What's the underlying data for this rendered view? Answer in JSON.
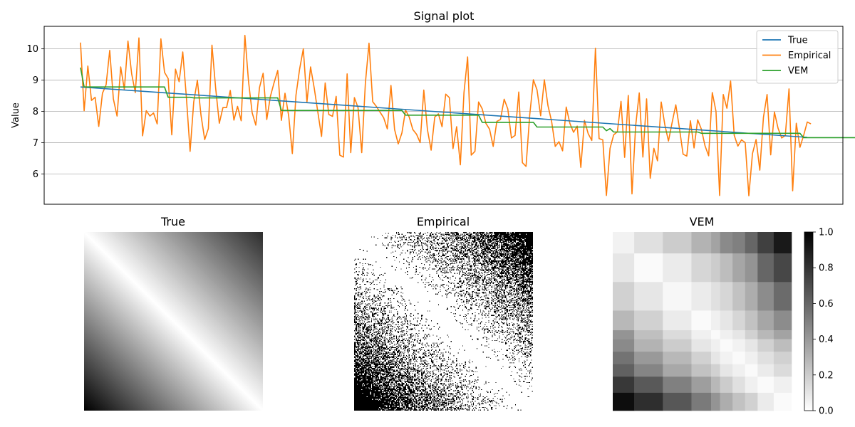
{
  "chart_data": [
    {
      "type": "line",
      "title": "Signal plot",
      "xlabel": "",
      "ylabel": "Value",
      "ylim": [
        5.03,
        10.72
      ],
      "yticks": [
        6,
        7,
        8,
        9,
        10
      ],
      "grid": "y",
      "legend_position": "top-right",
      "n_points": 200,
      "series": [
        {
          "name": "True",
          "color": "#1f77b4",
          "x": [
            0,
            199
          ],
          "values": [
            8.78,
            7.17
          ]
        },
        {
          "name": "Empirical",
          "color": "#ff7f0e",
          "values": [
            10.2,
            8.02,
            9.45,
            8.35,
            8.45,
            7.52,
            8.58,
            8.85,
            9.95,
            8.4,
            7.85,
            9.42,
            8.7,
            10.25,
            9.2,
            8.6,
            10.35,
            7.22,
            8.02,
            7.85,
            7.95,
            7.6,
            10.32,
            9.25,
            9.05,
            7.25,
            9.35,
            8.95,
            9.9,
            8.45,
            6.72,
            8.3,
            9.0,
            7.88,
            7.1,
            7.45,
            10.12,
            8.76,
            7.62,
            8.12,
            8.12,
            8.67,
            7.72,
            8.16,
            7.7,
            10.43,
            8.96,
            7.96,
            7.56,
            8.76,
            9.22,
            7.74,
            8.48,
            8.92,
            9.31,
            7.71,
            8.58,
            7.85,
            6.65,
            8.52,
            9.35,
            10.0,
            8.3,
            9.42,
            8.75,
            7.96,
            7.2,
            8.91,
            7.9,
            7.84,
            8.48,
            6.6,
            6.54,
            9.2,
            6.68,
            8.44,
            8.12,
            6.68,
            8.9,
            10.18,
            8.31,
            8.16,
            7.98,
            7.8,
            7.44,
            8.83,
            7.42,
            6.96,
            7.31,
            8.04,
            7.82,
            7.42,
            7.27,
            7.0,
            8.68,
            7.42,
            6.76,
            7.82,
            7.92,
            7.51,
            8.55,
            8.44,
            6.81,
            7.51,
            6.29,
            8.6,
            9.74,
            6.6,
            6.72,
            8.3,
            8.08,
            7.62,
            7.43,
            6.88,
            7.68,
            7.74,
            8.39,
            8.08,
            7.15,
            7.23,
            8.62,
            6.36,
            6.24,
            7.89,
            9.01,
            8.69,
            7.86,
            9.01,
            8.18,
            7.68,
            6.88,
            7.03,
            6.74,
            8.14,
            7.62,
            7.33,
            7.53,
            6.21,
            7.71,
            7.29,
            7.07,
            10.02,
            7.13,
            7.09,
            5.31,
            6.82,
            7.25,
            7.35,
            8.32,
            6.53,
            8.51,
            5.36,
            7.53,
            8.59,
            6.54,
            8.4,
            5.86,
            6.82,
            6.42,
            8.3,
            7.57,
            7.05,
            7.65,
            8.21,
            7.46,
            6.63,
            6.57,
            7.7,
            6.83,
            7.73,
            7.43,
            6.9,
            6.58,
            8.6,
            8.0,
            5.31,
            8.54,
            8.1,
            8.97,
            7.23,
            6.89,
            7.09,
            7.0,
            5.3,
            6.65,
            7.1,
            6.12,
            7.81,
            8.54,
            6.61,
            7.98,
            7.46,
            7.15,
            7.23,
            8.72,
            5.46,
            7.62,
            6.85,
            7.23,
            7.66,
            7.6
          ]
        },
        {
          "name": "VEM",
          "color": "#2ca02c",
          "values": [
            9.4,
            8.78,
            8.78,
            8.78,
            8.78,
            8.78,
            8.78,
            8.78,
            8.78,
            8.78,
            8.78,
            8.78,
            8.78,
            8.78,
            8.78,
            8.78,
            8.78,
            8.78,
            8.78,
            8.78,
            8.78,
            8.78,
            8.78,
            8.78,
            8.45,
            8.45,
            8.45,
            8.45,
            8.45,
            8.45,
            8.45,
            8.43,
            8.43,
            8.43,
            8.43,
            8.43,
            8.43,
            8.43,
            8.43,
            8.43,
            8.43,
            8.43,
            8.43,
            8.43,
            8.43,
            8.43,
            8.43,
            8.43,
            8.43,
            8.43,
            8.43,
            8.43,
            8.43,
            8.43,
            8.43,
            8.03,
            8.03,
            8.03,
            8.03,
            8.03,
            8.03,
            8.03,
            8.03,
            8.03,
            8.03,
            8.03,
            8.03,
            8.03,
            8.03,
            8.03,
            8.03,
            8.03,
            8.03,
            8.03,
            8.03,
            8.03,
            8.03,
            8.03,
            8.03,
            8.03,
            8.03,
            8.03,
            8.03,
            8.03,
            8.03,
            8.03,
            8.03,
            8.03,
            8.03,
            7.88,
            7.88,
            7.88,
            7.88,
            7.88,
            7.88,
            7.88,
            7.88,
            7.88,
            7.88,
            7.88,
            7.88,
            7.88,
            7.88,
            7.88,
            7.88,
            7.88,
            7.88,
            7.88,
            7.88,
            7.88,
            7.65,
            7.65,
            7.65,
            7.65,
            7.65,
            7.65,
            7.65,
            7.65,
            7.65,
            7.65,
            7.65,
            7.65,
            7.65,
            7.65,
            7.65,
            7.5,
            7.5,
            7.5,
            7.5,
            7.5,
            7.5,
            7.5,
            7.5,
            7.5,
            7.5,
            7.5,
            7.5,
            7.5,
            7.5,
            7.5,
            7.5,
            7.5,
            7.5,
            7.5,
            7.38,
            7.45,
            7.34,
            7.34,
            7.34,
            7.34,
            7.34,
            7.34,
            7.34,
            7.34,
            7.34,
            7.34,
            7.34,
            7.34,
            7.34,
            7.34,
            7.34,
            7.34,
            7.34,
            7.34,
            7.34,
            7.34,
            7.34,
            7.34,
            7.34,
            7.34,
            7.3,
            7.3,
            7.3,
            7.3,
            7.3,
            7.3,
            7.3,
            7.3,
            7.3,
            7.3,
            7.3,
            7.3,
            7.3,
            7.3,
            7.3,
            7.3,
            7.3,
            7.3,
            7.3,
            7.3,
            7.3,
            7.3,
            7.3,
            7.3,
            7.3,
            7.3,
            7.3,
            7.3,
            7.16,
            7.16,
            7.16,
            7.16,
            7.16,
            7.16,
            7.16,
            7.16,
            7.16,
            7.16,
            7.16,
            7.16,
            7.16,
            7.16,
            7.16,
            7.16,
            7.16,
            7.16
          ]
        }
      ]
    },
    {
      "type": "heatmap",
      "title": "True",
      "colormap": "gray_r",
      "description_values": "gradient: 1 - |i-j|/(n-1), near 0 along diagonal (white) rising to 1 at off-diagonal corners (black); upper-right slightly lighter than lower-left",
      "size": 200,
      "corner_upper_right": 0.82,
      "corner_lower_left": 1.0
    },
    {
      "type": "heatmap",
      "title": "Empirical",
      "colormap": "gray_r",
      "binary": true,
      "size": 200,
      "note_values": "binary 0/1 samples; probability of 1 grows with distance from the diagonal"
    },
    {
      "type": "heatmap",
      "title": "VEM",
      "colormap": "gray_r",
      "clim": [
        0.0,
        1.0
      ],
      "colorbar_ticks": [
        "0.0",
        "0.2",
        "0.4",
        "0.6",
        "0.8",
        "1.0"
      ],
      "block_boundaries": [
        0,
        0.12,
        0.28,
        0.44,
        0.55,
        0.6,
        0.67,
        0.74,
        0.81,
        0.9,
        1.0
      ],
      "values": [
        [
          0.05,
          0.12,
          0.2,
          0.3,
          0.36,
          0.46,
          0.5,
          0.6,
          0.75,
          0.9
        ],
        [
          0.1,
          0.02,
          0.08,
          0.16,
          0.2,
          0.26,
          0.35,
          0.42,
          0.6,
          0.72
        ],
        [
          0.18,
          0.1,
          0.03,
          0.08,
          0.12,
          0.16,
          0.24,
          0.32,
          0.45,
          0.58
        ],
        [
          0.28,
          0.18,
          0.08,
          0.02,
          0.06,
          0.1,
          0.16,
          0.24,
          0.35,
          0.45
        ],
        [
          0.42,
          0.25,
          0.14,
          0.06,
          0.02,
          0.06,
          0.1,
          0.18,
          0.28,
          0.36
        ],
        [
          0.46,
          0.3,
          0.2,
          0.1,
          0.06,
          0.02,
          0.05,
          0.1,
          0.18,
          0.26
        ],
        [
          0.55,
          0.4,
          0.28,
          0.18,
          0.1,
          0.05,
          0.02,
          0.06,
          0.12,
          0.18
        ],
        [
          0.62,
          0.48,
          0.34,
          0.24,
          0.18,
          0.1,
          0.06,
          0.02,
          0.08,
          0.14
        ],
        [
          0.78,
          0.65,
          0.5,
          0.38,
          0.28,
          0.2,
          0.12,
          0.06,
          0.02,
          0.06
        ],
        [
          0.95,
          0.82,
          0.66,
          0.52,
          0.42,
          0.32,
          0.24,
          0.18,
          0.08,
          0.02
        ]
      ]
    }
  ]
}
